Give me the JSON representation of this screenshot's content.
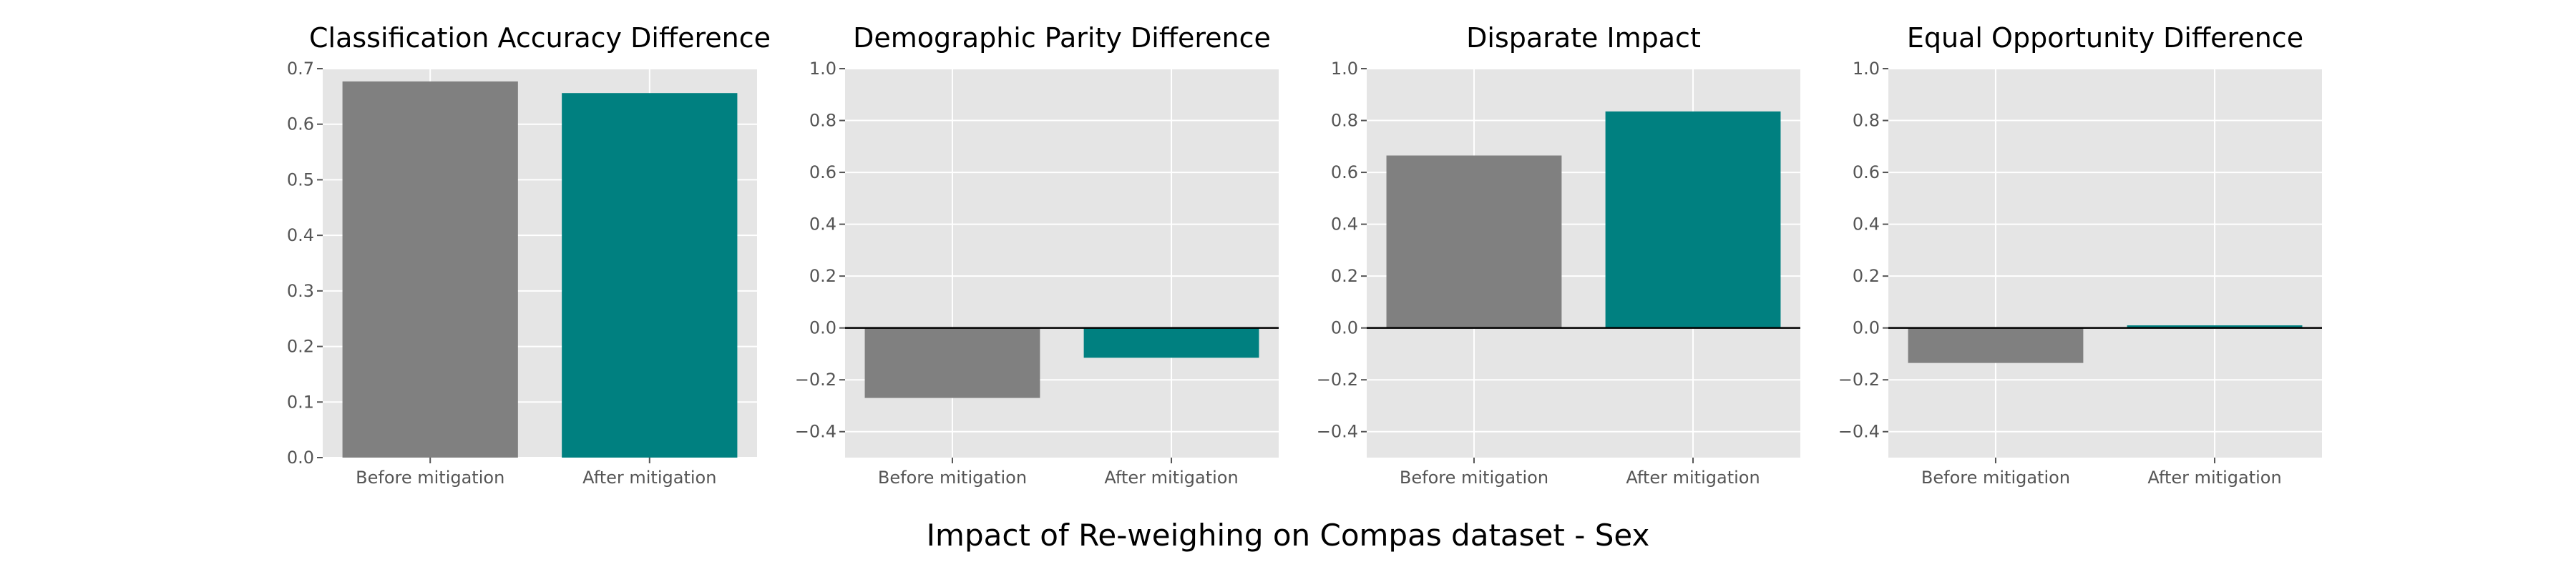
{
  "figure": {
    "suptitle": "Impact of Re-weighing on Compas dataset - Sex",
    "background": "#ffffff",
    "panel_background": "#e5e5e5",
    "grid_color": "#ffffff",
    "tick_label_color": "#555555",
    "title_color": "#000000",
    "before_color": "#808080",
    "after_color": "#008080",
    "zero_line_color": "#000000"
  },
  "chart_data": [
    {
      "type": "bar",
      "title": "Classification Accuracy Difference",
      "categories": [
        "Before mitigation",
        "After mitigation"
      ],
      "values": [
        0.677,
        0.656
      ],
      "colors": [
        "#808080",
        "#008080"
      ],
      "ylim": [
        0,
        0.7
      ],
      "yticks": [
        0.0,
        0.1,
        0.2,
        0.3,
        0.4,
        0.5,
        0.6,
        0.7
      ],
      "ytick_labels": [
        "0.0",
        "0.1",
        "0.2",
        "0.3",
        "0.4",
        "0.5",
        "0.6",
        "0.7"
      ],
      "zero_line": false,
      "grid": true,
      "xlabel": "",
      "ylabel": ""
    },
    {
      "type": "bar",
      "title": "Demographic Parity Difference",
      "categories": [
        "Before mitigation",
        "After mitigation"
      ],
      "values": [
        -0.27,
        -0.115
      ],
      "colors": [
        "#808080",
        "#008080"
      ],
      "ylim": [
        -0.5,
        1.0
      ],
      "yticks": [
        -0.4,
        -0.2,
        0.0,
        0.2,
        0.4,
        0.6,
        0.8,
        1.0
      ],
      "ytick_labels": [
        "−0.4",
        "−0.2",
        "0.0",
        "0.2",
        "0.4",
        "0.6",
        "0.8",
        "1.0"
      ],
      "zero_line": true,
      "grid": true,
      "xlabel": "",
      "ylabel": ""
    },
    {
      "type": "bar",
      "title": "Disparate Impact",
      "categories": [
        "Before mitigation",
        "After mitigation"
      ],
      "values": [
        0.665,
        0.835
      ],
      "colors": [
        "#808080",
        "#008080"
      ],
      "ylim": [
        -0.5,
        1.0
      ],
      "yticks": [
        -0.4,
        -0.2,
        0.0,
        0.2,
        0.4,
        0.6,
        0.8,
        1.0
      ],
      "ytick_labels": [
        "−0.4",
        "−0.2",
        "0.0",
        "0.2",
        "0.4",
        "0.6",
        "0.8",
        "1.0"
      ],
      "zero_line": true,
      "grid": true,
      "xlabel": "",
      "ylabel": ""
    },
    {
      "type": "bar",
      "title": "Equal Opportunity Difference",
      "categories": [
        "Before mitigation",
        "After mitigation"
      ],
      "values": [
        -0.135,
        0.01
      ],
      "colors": [
        "#808080",
        "#008080"
      ],
      "ylim": [
        -0.5,
        1.0
      ],
      "yticks": [
        -0.4,
        -0.2,
        0.0,
        0.2,
        0.4,
        0.6,
        0.8,
        1.0
      ],
      "ytick_labels": [
        "−0.4",
        "−0.2",
        "0.0",
        "0.2",
        "0.4",
        "0.6",
        "0.8",
        "1.0"
      ],
      "zero_line": true,
      "grid": true,
      "xlabel": "",
      "ylabel": ""
    }
  ]
}
